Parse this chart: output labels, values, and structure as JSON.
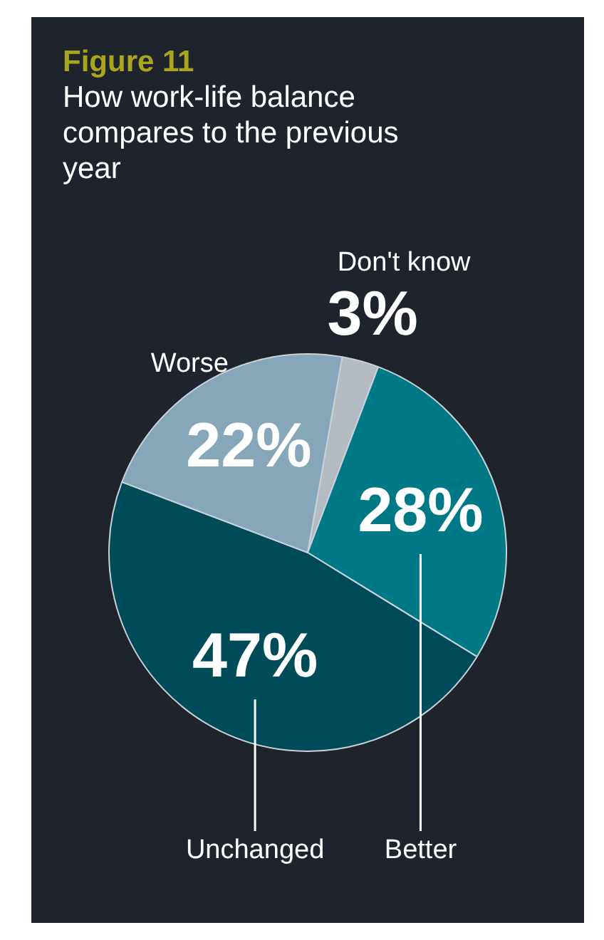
{
  "chart_data": {
    "type": "pie",
    "title": "Figure 11",
    "subtitle": "How work-life balance compares to the previous year",
    "categories": [
      "Don't know",
      "Better",
      "Unchanged",
      "Worse"
    ],
    "values": [
      3,
      28,
      47,
      22
    ],
    "colors": [
      "#b3bac2",
      "#007986",
      "#004b59",
      "#86a7ba"
    ],
    "value_labels": [
      "3%",
      "28%",
      "47%",
      "22%"
    ],
    "legend": false
  }
}
